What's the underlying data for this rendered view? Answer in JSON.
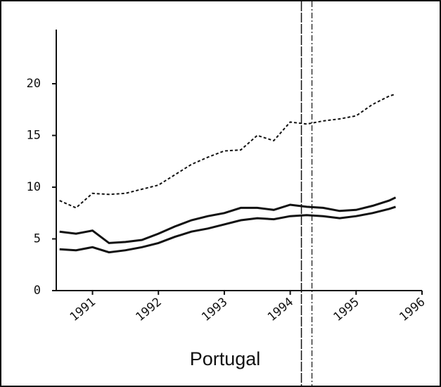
{
  "chart_data": {
    "type": "line",
    "xlabel": "Portugal",
    "x": [
      1990.5,
      1990.75,
      1991.0,
      1991.25,
      1991.5,
      1991.75,
      1992.0,
      1992.25,
      1992.5,
      1992.75,
      1993.0,
      1993.25,
      1993.5,
      1993.75,
      1994.0,
      1994.25,
      1994.5,
      1994.75,
      1995.0,
      1995.25,
      1995.5,
      1995.6
    ],
    "series": [
      {
        "color": "#111111",
        "dash": true,
        "values": [
          8.7,
          8.0,
          9.4,
          9.3,
          9.4,
          9.8,
          10.2,
          11.2,
          12.2,
          12.9,
          13.5,
          13.6,
          15.0,
          14.5,
          16.3,
          16.1,
          16.4,
          16.6,
          16.9,
          18.0,
          18.8,
          19.0
        ]
      },
      {
        "color": "#111111",
        "dash": false,
        "values": [
          5.7,
          5.5,
          5.8,
          4.6,
          4.7,
          4.9,
          5.5,
          6.2,
          6.8,
          7.2,
          7.5,
          8.0,
          8.0,
          7.8,
          8.3,
          8.1,
          8.0,
          7.7,
          7.8,
          8.2,
          8.7,
          9.0
        ]
      },
      {
        "color": "#111111",
        "dash": false,
        "values": [
          4.0,
          3.9,
          4.2,
          3.7,
          3.9,
          4.2,
          4.6,
          5.2,
          5.7,
          6.0,
          6.4,
          6.8,
          7.0,
          6.9,
          7.2,
          7.3,
          7.2,
          7.0,
          7.2,
          7.5,
          7.9,
          8.1
        ]
      }
    ],
    "vlines": [
      1994.17,
      1994.33
    ],
    "xlim": [
      1990.45,
      1996
    ],
    "xticks": [
      1991,
      1992,
      1993,
      1994,
      1995,
      1996
    ],
    "ylim": [
      0,
      25
    ],
    "yticks": [
      0,
      5,
      10,
      15,
      20
    ]
  }
}
